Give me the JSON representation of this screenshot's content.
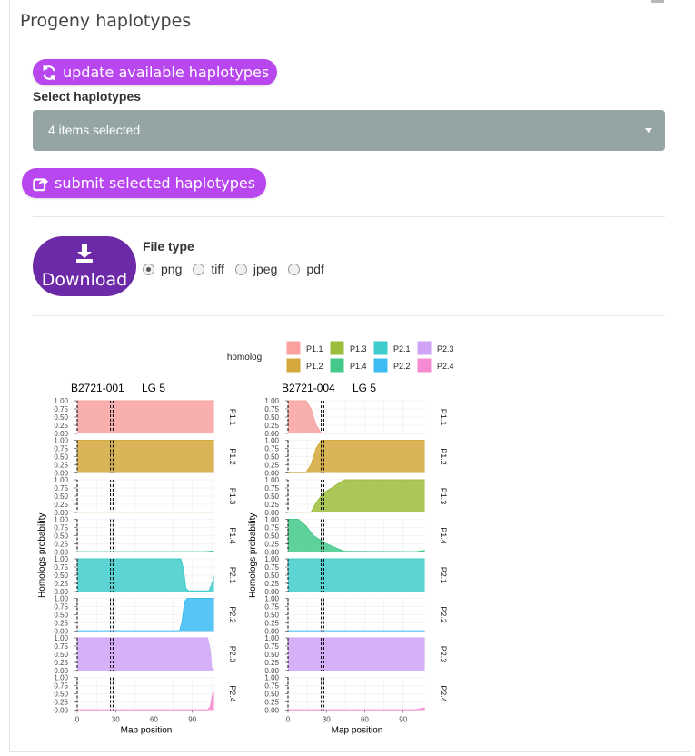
{
  "panel": {
    "title": "Progeny haplotypes"
  },
  "buttons": {
    "update": "update available haplotypes",
    "submit": "submit selected haplotypes",
    "download": "Download"
  },
  "select": {
    "label": "Select haplotypes",
    "value": "4 items selected"
  },
  "file_type": {
    "label": "File type",
    "options": [
      "png",
      "tiff",
      "jpeg",
      "pdf"
    ],
    "selected": "png"
  },
  "colors": {
    "accent": "#b847f0",
    "download": "#6c2aa8",
    "select_bg": "#95a5a6"
  },
  "chart_data": {
    "type": "area",
    "legend_title": "homolog",
    "legend": [
      {
        "name": "P1.1",
        "color": "#f8a19f"
      },
      {
        "name": "P1.2",
        "color": "#d4a83a"
      },
      {
        "name": "P1.3",
        "color": "#9bbd3a"
      },
      {
        "name": "P1.4",
        "color": "#43c98a"
      },
      {
        "name": "P2.1",
        "color": "#3fcccc"
      },
      {
        "name": "P2.2",
        "color": "#3bbcf2"
      },
      {
        "name": "P2.3",
        "color": "#cfa3f7"
      },
      {
        "name": "P2.4",
        "color": "#f58bd0"
      }
    ],
    "ylabel": "Homologs probability",
    "xlabel": "Map position",
    "xlim": [
      0,
      108
    ],
    "ylim": [
      0,
      1
    ],
    "xticks": [
      0,
      30,
      60,
      90
    ],
    "yticks": [
      "0.00",
      "0.25",
      "0.50",
      "0.75",
      "1.00"
    ],
    "panels": [
      {
        "individual": "B2721-001",
        "lg": "LG 5",
        "marker_lines": [
          0,
          26,
          28
        ],
        "series": [
          {
            "name": "P1.1",
            "points": [
              [
                0,
                1
              ],
              [
                107,
                1
              ]
            ]
          },
          {
            "name": "P1.2",
            "points": [
              [
                0,
                1
              ],
              [
                107,
                1
              ]
            ]
          },
          {
            "name": "P1.3",
            "points": [
              [
                0,
                0.01
              ],
              [
                107,
                0.01
              ]
            ]
          },
          {
            "name": "P1.4",
            "points": [
              [
                0,
                0.01
              ],
              [
                100,
                0.01
              ],
              [
                107,
                0.03
              ]
            ]
          },
          {
            "name": "P2.1",
            "points": [
              [
                0,
                1
              ],
              [
                81,
                1
              ],
              [
                83,
                0.7
              ],
              [
                85,
                0.1
              ],
              [
                87,
                0.02
              ],
              [
                103,
                0.02
              ],
              [
                105,
                0.2
              ],
              [
                107,
                0.45
              ]
            ]
          },
          {
            "name": "P2.2",
            "points": [
              [
                0,
                0.01
              ],
              [
                80,
                0.01
              ],
              [
                82,
                0.3
              ],
              [
                84,
                0.9
              ],
              [
                86,
                1
              ],
              [
                107,
                1
              ]
            ]
          },
          {
            "name": "P2.3",
            "points": [
              [
                0,
                1
              ],
              [
                102,
                1
              ],
              [
                104,
                0.6
              ],
              [
                105,
                0.1
              ],
              [
                107,
                0.02
              ]
            ]
          },
          {
            "name": "P2.4",
            "points": [
              [
                0,
                0.01
              ],
              [
                102,
                0.01
              ],
              [
                104,
                0.1
              ],
              [
                106,
                0.5
              ],
              [
                107,
                0.55
              ]
            ]
          }
        ]
      },
      {
        "individual": "B2721-004",
        "lg": "LG 5",
        "marker_lines": [
          0,
          26,
          28
        ],
        "series": [
          {
            "name": "P1.1",
            "points": [
              [
                0,
                1
              ],
              [
                14,
                1
              ],
              [
                18,
                0.75
              ],
              [
                22,
                0.25
              ],
              [
                26,
                0.01
              ],
              [
                107,
                0.01
              ]
            ]
          },
          {
            "name": "P1.2",
            "points": [
              [
                0,
                0.01
              ],
              [
                14,
                0.01
              ],
              [
                18,
                0.25
              ],
              [
                22,
                0.75
              ],
              [
                26,
                1
              ],
              [
                107,
                1
              ]
            ]
          },
          {
            "name": "P1.3",
            "points": [
              [
                0,
                0.01
              ],
              [
                18,
                0.01
              ],
              [
                22,
                0.3
              ],
              [
                28,
                0.6
              ],
              [
                34,
                0.75
              ],
              [
                44,
                1
              ],
              [
                107,
                1
              ]
            ]
          },
          {
            "name": "P1.4",
            "points": [
              [
                0,
                1
              ],
              [
                8,
                1
              ],
              [
                14,
                0.8
              ],
              [
                20,
                0.5
              ],
              [
                30,
                0.25
              ],
              [
                44,
                0.02
              ],
              [
                100,
                0.01
              ],
              [
                107,
                0.05
              ]
            ]
          },
          {
            "name": "P2.1",
            "points": [
              [
                0,
                1
              ],
              [
                107,
                1
              ]
            ]
          },
          {
            "name": "P2.2",
            "points": [
              [
                0,
                0.01
              ],
              [
                107,
                0.01
              ]
            ]
          },
          {
            "name": "P2.3",
            "points": [
              [
                0,
                1
              ],
              [
                107,
                1
              ]
            ]
          },
          {
            "name": "P2.4",
            "points": [
              [
                0,
                0.01
              ],
              [
                100,
                0.01
              ],
              [
                107,
                0.07
              ]
            ]
          }
        ]
      }
    ]
  }
}
